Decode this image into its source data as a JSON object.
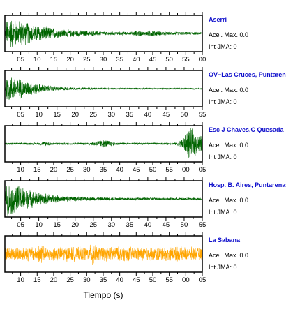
{
  "chart_data": {
    "type": "line",
    "xlabel": "Tiempo (s)",
    "grid": false,
    "legend": "none",
    "panels": [
      {
        "station": "Aserri",
        "acel_max": "Acel. Max. 0.0",
        "int_jma": "Int JMA: 0",
        "color": "#006400",
        "tick_labels": [
          "05",
          "10",
          "15",
          "20",
          "25",
          "30",
          "35",
          "40",
          "45",
          "50",
          "55",
          "00"
        ],
        "xlim": [
          0,
          59.5
        ],
        "ylim": [
          -1,
          1
        ],
        "envelope": [
          [
            0,
            0.05
          ],
          [
            0.6,
            0.9
          ],
          [
            2,
            0.95
          ],
          [
            5,
            0.8
          ],
          [
            8,
            0.6
          ],
          [
            12,
            0.45
          ],
          [
            16,
            0.3
          ],
          [
            20,
            0.22
          ],
          [
            25,
            0.16
          ],
          [
            30,
            0.12
          ],
          [
            38,
            0.1
          ],
          [
            40,
            0.2
          ],
          [
            42,
            0.1
          ],
          [
            44,
            0.22
          ],
          [
            47,
            0.12
          ],
          [
            50,
            0.1
          ],
          [
            55,
            0.09
          ],
          [
            59.5,
            0.08
          ]
        ]
      },
      {
        "station": "OV−Las Cruces, Puntarenas",
        "acel_max": "Acel. Max. 0.0",
        "int_jma": "Int JMA: 0",
        "color": "#006400",
        "tick_labels": [
          "05",
          "10",
          "15",
          "20",
          "25",
          "30",
          "35",
          "40",
          "45",
          "50",
          "55"
        ],
        "xlim": [
          0,
          59.5
        ],
        "ylim": [
          -1,
          1
        ],
        "envelope": [
          [
            0,
            0.05
          ],
          [
            0.5,
            0.85
          ],
          [
            2,
            0.8
          ],
          [
            5,
            0.6
          ],
          [
            8,
            0.4
          ],
          [
            12,
            0.22
          ],
          [
            16,
            0.12
          ],
          [
            20,
            0.08
          ],
          [
            30,
            0.05
          ],
          [
            45,
            0.04
          ],
          [
            59.5,
            0.04
          ]
        ]
      },
      {
        "station": "Esc J Chaves,C Quesada",
        "acel_max": "Acel. Max. 0.0",
        "int_jma": "Int JMA: 0",
        "color": "#006400",
        "tick_labels": [
          "10",
          "15",
          "20",
          "25",
          "30",
          "35",
          "40",
          "45",
          "50",
          "55",
          "00",
          "05"
        ],
        "xlim": [
          0,
          59.5
        ],
        "ylim": [
          -1,
          1
        ],
        "envelope": [
          [
            0,
            0.06
          ],
          [
            10,
            0.06
          ],
          [
            12,
            0.14
          ],
          [
            15,
            0.07
          ],
          [
            20,
            0.06
          ],
          [
            26,
            0.08
          ],
          [
            28,
            0.22
          ],
          [
            31,
            0.24
          ],
          [
            33,
            0.08
          ],
          [
            40,
            0.06
          ],
          [
            50,
            0.06
          ],
          [
            52,
            0.1
          ],
          [
            54,
            0.5
          ],
          [
            55.5,
            1.0
          ],
          [
            57,
            0.85
          ],
          [
            58.5,
            0.6
          ],
          [
            59.5,
            0.5
          ]
        ]
      },
      {
        "station": "Hosp. B. Aires, Puntarenas",
        "acel_max": "Acel. Max. 0.0",
        "int_jma": "Int JMA: 0",
        "color": "#006400",
        "tick_labels": [
          "05",
          "10",
          "15",
          "20",
          "25",
          "30",
          "35",
          "40",
          "45",
          "50",
          "55"
        ],
        "xlim": [
          0,
          59.5
        ],
        "ylim": [
          -1,
          1
        ],
        "envelope": [
          [
            0,
            0.05
          ],
          [
            0.4,
            0.95
          ],
          [
            2,
            1.0
          ],
          [
            4,
            0.85
          ],
          [
            7,
            0.6
          ],
          [
            10,
            0.42
          ],
          [
            14,
            0.28
          ],
          [
            18,
            0.18
          ],
          [
            24,
            0.12
          ],
          [
            30,
            0.1
          ],
          [
            40,
            0.08
          ],
          [
            50,
            0.07
          ],
          [
            59.5,
            0.07
          ]
        ]
      },
      {
        "station": "La Sabana",
        "acel_max": "Acel. Max. 0.0",
        "int_jma": "Int JMA: 0",
        "color": "#FFA500",
        "tick_labels": [
          "10",
          "15",
          "20",
          "25",
          "30",
          "35",
          "40",
          "45",
          "50",
          "55",
          "00",
          "05"
        ],
        "xlim": [
          0,
          59.5
        ],
        "ylim": [
          -1,
          1
        ],
        "envelope": [
          [
            0,
            0.4
          ],
          [
            5,
            0.45
          ],
          [
            10,
            0.45
          ],
          [
            11,
            0.9
          ],
          [
            12,
            0.45
          ],
          [
            20,
            0.45
          ],
          [
            25.5,
            0.45
          ],
          [
            26.5,
            1.0
          ],
          [
            27.5,
            0.45
          ],
          [
            40,
            0.45
          ],
          [
            50,
            0.45
          ],
          [
            59.5,
            0.42
          ]
        ]
      }
    ]
  }
}
